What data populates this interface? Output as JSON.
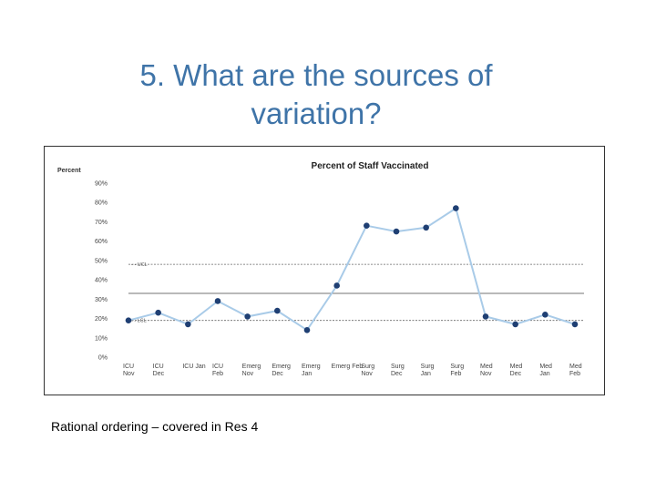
{
  "slide": {
    "title_line1": "5. What are the sources of",
    "title_line2": "variation?",
    "caption": "Rational ordering – covered in Res 4"
  },
  "chart_data": {
    "type": "line",
    "title": "Percent of Staff Vaccinated",
    "ylabel": "Percent",
    "xlabel": "",
    "ylim": [
      0,
      90
    ],
    "yticks": [
      0,
      10,
      20,
      30,
      40,
      50,
      60,
      70,
      80,
      90
    ],
    "ytick_labels": [
      "0%",
      "10%",
      "20%",
      "30%",
      "40%",
      "50%",
      "60%",
      "70%",
      "80%",
      "90%"
    ],
    "categories": [
      [
        "ICU",
        "Nov"
      ],
      [
        "ICU",
        "Dec"
      ],
      [
        "ICU Jan"
      ],
      [
        "ICU",
        "Feb"
      ],
      [
        "Emerg",
        "Nov"
      ],
      [
        "Emerg",
        "Dec"
      ],
      [
        "Emerg",
        "Jan"
      ],
      [
        "Emerg Feb"
      ],
      [
        "Surg",
        "Nov"
      ],
      [
        "Surg",
        "Dec"
      ],
      [
        "Surg",
        "Jan"
      ],
      [
        "Surg",
        "Feb"
      ],
      [
        "Med",
        "Nov"
      ],
      [
        "Med",
        "Dec"
      ],
      [
        "Med",
        "Jan"
      ],
      [
        "Med",
        "Feb"
      ]
    ],
    "values": [
      19,
      23,
      17,
      29,
      21,
      24,
      14,
      37,
      68,
      65,
      67,
      77,
      21,
      17,
      22,
      17
    ],
    "center_line": 33,
    "ucl": 48,
    "lcl": 19,
    "ucl_label": "UCL",
    "lcl_label": "LCL",
    "colors": {
      "line": "#a9cbe8",
      "marker": "#1f3f73",
      "title_text": "#3f74a8"
    },
    "grid": false
  }
}
